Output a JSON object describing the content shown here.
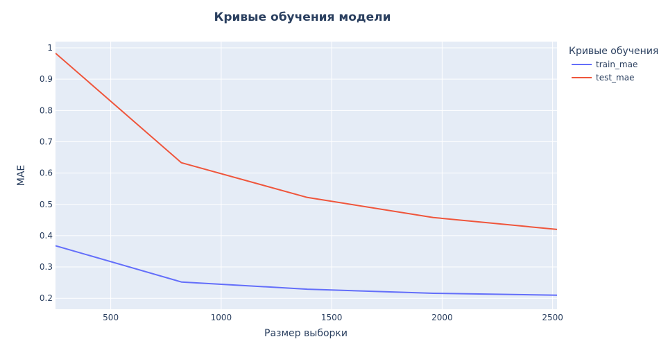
{
  "chart_data": {
    "type": "line",
    "title": "Кривые обучения модели",
    "xlabel": "Размер выборки",
    "ylabel": "MAE",
    "xlim": [
      250,
      2520
    ],
    "ylim": [
      0.165,
      1.02
    ],
    "x_ticks": [
      500,
      1000,
      1500,
      2000,
      2500
    ],
    "y_ticks": [
      0.2,
      0.3,
      0.4,
      0.5,
      0.6,
      0.7,
      0.8,
      0.9,
      1
    ],
    "grid": true,
    "legend": {
      "title": "Кривые обучения",
      "placement": "top-right-outside"
    },
    "series": [
      {
        "name": "train_mae",
        "color": "#636efa",
        "x": [
          250,
          820,
          1390,
          1960,
          2520
        ],
        "y": [
          0.368,
          0.252,
          0.229,
          0.216,
          0.21
        ]
      },
      {
        "name": "test_mae",
        "color": "#ef553b",
        "x": [
          250,
          820,
          1390,
          1960,
          2520
        ],
        "y": [
          0.983,
          0.633,
          0.522,
          0.458,
          0.42
        ]
      }
    ]
  },
  "colors": {
    "plot_background": "#e5ecf6",
    "grid": "#ffffff",
    "text": "#2a3f5f"
  }
}
